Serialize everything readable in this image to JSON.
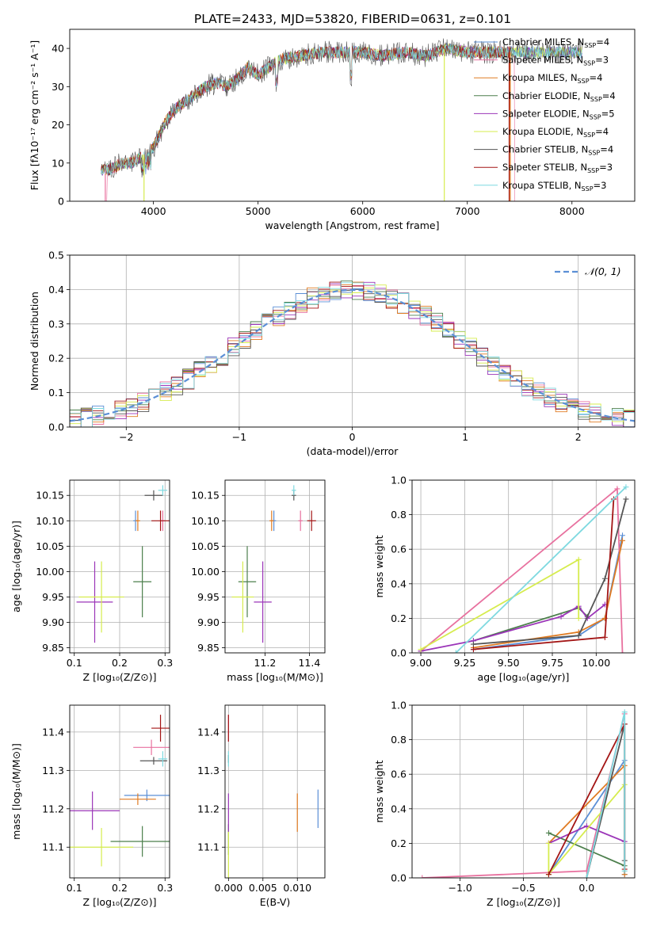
{
  "figure": {
    "title": "PLATE=2433, MJD=53820, FIBERID=0631, z=0.101"
  },
  "colors": {
    "Chabrier MILES": "#5b8fd6",
    "Salpeter MILES": "#e8719f",
    "Kroupa MILES": "#e07b22",
    "Chabrier ELODIE": "#4c7f4c",
    "Salpeter ELODIE": "#9b35b8",
    "Kroupa ELODIE": "#d6ec4e",
    "Chabrier STELIB": "#555555",
    "Salpeter STELIB": "#a31515",
    "Kroupa STELIB": "#7fd9e0",
    "gaussian": "#5b8fd6"
  },
  "chart_data": [
    {
      "id": "spectrum",
      "type": "line",
      "title": "PLATE=2433, MJD=53820, FIBERID=0631, z=0.101",
      "xlabel": "wavelength [Angstrom, rest frame]",
      "ylabel": "Flux [fλ10⁻¹⁷ erg cm⁻² s⁻¹ A⁻¹]",
      "xlim": [
        3200,
        8600
      ],
      "ylim": [
        0,
        45
      ],
      "xticks": [
        4000,
        5000,
        6000,
        7000,
        8000
      ],
      "yticks": [
        0,
        10,
        20,
        30,
        40
      ],
      "legend": "upper-right",
      "continuum": {
        "x": [
          3500,
          3600,
          3700,
          3800,
          3900,
          4000,
          4100,
          4200,
          4300,
          4400,
          4500,
          4600,
          4700,
          4800,
          4900,
          5000,
          5200,
          5400,
          5600,
          5800,
          6000,
          6200,
          6400,
          6600,
          6800,
          7000,
          7200,
          7400
        ],
        "y": [
          8,
          8.5,
          10,
          10,
          12,
          14,
          20,
          24,
          26,
          28,
          30,
          31,
          30,
          32,
          35,
          33,
          37,
          38,
          39,
          39,
          39,
          38,
          39,
          38,
          40,
          39,
          39,
          39
        ]
      },
      "series": [
        {
          "name": "Chabrier MILES",
          "label": "Chabrier MILES, N",
          "sub": "SSP",
          "n": "=4"
        },
        {
          "name": "Salpeter MILES",
          "label": "Salpeter MILES, N",
          "sub": "SSP",
          "n": "=3"
        },
        {
          "name": "Kroupa MILES",
          "label": "Kroupa MILES, N",
          "sub": "SSP",
          "n": "=4"
        },
        {
          "name": "Chabrier ELODIE",
          "label": "Chabrier ELODIE, N",
          "sub": "SSP",
          "n": "=4"
        },
        {
          "name": "Salpeter ELODIE",
          "label": "Salpeter ELODIE, N",
          "sub": "SSP",
          "n": "=5"
        },
        {
          "name": "Kroupa ELODIE",
          "label": "Kroupa ELODIE, N",
          "sub": "SSP",
          "n": "=4"
        },
        {
          "name": "Chabrier STELIB",
          "label": "Chabrier STELIB, N",
          "sub": "SSP",
          "n": "=4"
        },
        {
          "name": "Salpeter STELIB",
          "label": "Salpeter STELIB, N",
          "sub": "SSP",
          "n": "=3"
        },
        {
          "name": "Kroupa STELIB",
          "label": "Kroupa STELIB, N",
          "sub": "SSP",
          "n": "=3"
        }
      ],
      "drops": [
        {
          "name": "Salpeter MILES",
          "x": 3540
        },
        {
          "name": "Kroupa ELODIE",
          "x": 3910
        },
        {
          "name": "Kroupa ELODIE",
          "x": 6780
        },
        {
          "name": "Salpeter STELIB",
          "x": 7400
        },
        {
          "name": "Kroupa MILES",
          "x": 7410
        }
      ]
    },
    {
      "id": "residuals",
      "type": "histogram",
      "xlabel": "(data-model)/error",
      "ylabel": "Normed distribution",
      "xlim": [
        -2.5,
        2.5
      ],
      "ylim": [
        0,
        0.5
      ],
      "xticks": [
        -2,
        -1,
        0,
        1,
        2
      ],
      "yticks": [
        0.0,
        0.1,
        0.2,
        0.3,
        0.4,
        0.5
      ],
      "grid": true,
      "legend": "upper-right",
      "legend_label": "𝒩(0, 1)",
      "bin_width": 0.1
    },
    {
      "id": "age-vs-Z",
      "type": "errorbar",
      "xlabel": "Z [log₁₀(Z/Z⊙)]",
      "ylabel": "age [log₁₀(age/yr)]",
      "xlim": [
        0.09,
        0.31
      ],
      "ylim": [
        9.84,
        10.18
      ],
      "xticks": [
        0.1,
        0.2,
        0.3
      ],
      "yticks": [
        9.85,
        9.9,
        9.95,
        10.0,
        10.05,
        10.1,
        10.15
      ],
      "grid": true,
      "points": [
        {
          "name": "Chabrier MILES",
          "x": 0.235,
          "xerr": 0.005,
          "y": 10.1,
          "yerr": 0.02
        },
        {
          "name": "Salpeter MILES",
          "x": 0.295,
          "xerr": 0.005,
          "y": 10.1,
          "yerr": 0.02
        },
        {
          "name": "Kroupa MILES",
          "x": 0.24,
          "xerr": 0.005,
          "y": 10.1,
          "yerr": 0.02
        },
        {
          "name": "Chabrier ELODIE",
          "x": 0.25,
          "xerr": 0.02,
          "y": 9.98,
          "yerr": 0.07
        },
        {
          "name": "Salpeter ELODIE",
          "x": 0.145,
          "xerr": 0.04,
          "y": 9.94,
          "yerr": 0.08
        },
        {
          "name": "Kroupa ELODIE",
          "x": 0.16,
          "xerr": 0.05,
          "y": 9.95,
          "yerr": 0.07
        },
        {
          "name": "Chabrier STELIB",
          "x": 0.275,
          "xerr": 0.02,
          "y": 10.15,
          "yerr": 0.01
        },
        {
          "name": "Salpeter STELIB",
          "x": 0.29,
          "xerr": 0.02,
          "y": 10.1,
          "yerr": 0.02
        },
        {
          "name": "Kroupa STELIB",
          "x": 0.295,
          "xerr": 0.01,
          "y": 10.16,
          "yerr": 0.01
        }
      ]
    },
    {
      "id": "age-vs-mass",
      "type": "errorbar",
      "xlabel": "mass [log₁₀(M/M⊙)]",
      "ylabel": "",
      "xlim": [
        11.02,
        11.47
      ],
      "ylim": [
        9.84,
        10.18
      ],
      "xticks": [
        11.2,
        11.4
      ],
      "yticks": [
        9.85,
        9.9,
        9.95,
        10.0,
        10.05,
        10.1,
        10.15
      ],
      "grid": true,
      "points": [
        {
          "name": "Chabrier MILES",
          "x": 11.24,
          "xerr": 0.01,
          "y": 10.1,
          "yerr": 0.02
        },
        {
          "name": "Salpeter MILES",
          "x": 11.36,
          "xerr": 0.01,
          "y": 10.1,
          "yerr": 0.02
        },
        {
          "name": "Kroupa MILES",
          "x": 11.23,
          "xerr": 0.01,
          "y": 10.1,
          "yerr": 0.02
        },
        {
          "name": "Chabrier ELODIE",
          "x": 11.12,
          "xerr": 0.04,
          "y": 9.98,
          "yerr": 0.07
        },
        {
          "name": "Salpeter ELODIE",
          "x": 11.19,
          "xerr": 0.04,
          "y": 9.94,
          "yerr": 0.08
        },
        {
          "name": "Kroupa ELODIE",
          "x": 11.1,
          "xerr": 0.05,
          "y": 9.95,
          "yerr": 0.07
        },
        {
          "name": "Chabrier STELIB",
          "x": 11.33,
          "xerr": 0.01,
          "y": 10.15,
          "yerr": 0.01
        },
        {
          "name": "Salpeter STELIB",
          "x": 11.41,
          "xerr": 0.02,
          "y": 10.1,
          "yerr": 0.02
        },
        {
          "name": "Kroupa STELIB",
          "x": 11.33,
          "xerr": 0.01,
          "y": 10.16,
          "yerr": 0.01
        }
      ]
    },
    {
      "id": "weight-vs-age",
      "type": "line",
      "xlabel": "age [log₁₀(age/yr)]",
      "ylabel": "mass weight",
      "xlim": [
        8.95,
        10.22
      ],
      "ylim": [
        0,
        1
      ],
      "xticks": [
        9.0,
        9.25,
        9.5,
        9.75,
        10.0
      ],
      "yticks": [
        0.0,
        0.2,
        0.4,
        0.6,
        0.8,
        1.0
      ],
      "grid": true,
      "series": [
        {
          "name": "Chabrier MILES",
          "x": [
            9.3,
            9.9,
            10.05,
            10.15
          ],
          "y": [
            0.02,
            0.1,
            0.2,
            0.68
          ]
        },
        {
          "name": "Salpeter MILES",
          "x": [
            9.0,
            10.12,
            10.15
          ],
          "y": [
            0.01,
            0.95,
            0.0
          ]
        },
        {
          "name": "Kroupa MILES",
          "x": [
            9.3,
            9.9,
            10.05,
            10.15
          ],
          "y": [
            0.03,
            0.12,
            0.2,
            0.65
          ]
        },
        {
          "name": "Chabrier ELODIE",
          "x": [
            9.3,
            9.9,
            9.95
          ],
          "y": [
            0.07,
            0.26,
            0.21
          ]
        },
        {
          "name": "Salpeter ELODIE",
          "x": [
            9.0,
            9.3,
            9.8,
            9.9,
            9.95,
            10.05
          ],
          "y": [
            0.01,
            0.07,
            0.21,
            0.27,
            0.2,
            0.28
          ]
        },
        {
          "name": "Kroupa ELODIE",
          "x": [
            9.0,
            9.9,
            9.9
          ],
          "y": [
            0.02,
            0.54,
            0.2
          ]
        },
        {
          "name": "Chabrier STELIB",
          "x": [
            9.3,
            9.9,
            10.05,
            10.17
          ],
          "y": [
            0.05,
            0.1,
            0.43,
            0.89
          ]
        },
        {
          "name": "Salpeter STELIB",
          "x": [
            9.3,
            10.05,
            10.1
          ],
          "y": [
            0.02,
            0.09,
            0.89
          ]
        },
        {
          "name": "Kroupa STELIB",
          "x": [
            9.2,
            10.17
          ],
          "y": [
            0.0,
            0.96
          ]
        }
      ]
    },
    {
      "id": "mass-vs-Z",
      "type": "errorbar",
      "xlabel": "Z [log₁₀(Z/Z⊙)]",
      "ylabel": "mass [log₁₀(M/M⊙)]",
      "xlim": [
        0.09,
        0.31
      ],
      "ylim": [
        11.02,
        11.47
      ],
      "xticks": [
        0.1,
        0.2,
        0.3
      ],
      "yticks": [
        11.1,
        11.2,
        11.3,
        11.4
      ],
      "grid": true,
      "points": [
        {
          "name": "Chabrier MILES",
          "x": 0.26,
          "xerr": 0.05,
          "y": 11.235,
          "yerr": 0.015
        },
        {
          "name": "Salpeter MILES",
          "x": 0.27,
          "xerr": 0.04,
          "y": 11.36,
          "yerr": 0.02
        },
        {
          "name": "Kroupa MILES",
          "x": 0.24,
          "xerr": 0.04,
          "y": 11.225,
          "yerr": 0.015
        },
        {
          "name": "Chabrier ELODIE",
          "x": 0.25,
          "xerr": 0.07,
          "y": 11.115,
          "yerr": 0.04
        },
        {
          "name": "Salpeter ELODIE",
          "x": 0.14,
          "xerr": 0.06,
          "y": 11.195,
          "yerr": 0.05
        },
        {
          "name": "Kroupa ELODIE",
          "x": 0.16,
          "xerr": 0.07,
          "y": 11.1,
          "yerr": 0.05
        },
        {
          "name": "Chabrier STELIB",
          "x": 0.275,
          "xerr": 0.03,
          "y": 11.325,
          "yerr": 0.01
        },
        {
          "name": "Salpeter STELIB",
          "x": 0.29,
          "xerr": 0.02,
          "y": 11.41,
          "yerr": 0.035
        },
        {
          "name": "Kroupa STELIB",
          "x": 0.295,
          "xerr": 0.01,
          "y": 11.33,
          "yerr": 0.02
        }
      ]
    },
    {
      "id": "mass-vs-EBV",
      "type": "errorbar",
      "xlabel": "E(B-V)",
      "ylabel": "",
      "xlim": [
        -0.0005,
        0.014
      ],
      "ylim": [
        11.02,
        11.47
      ],
      "xticks": [
        0.0,
        0.005,
        0.01
      ],
      "yticks": [
        11.1,
        11.2,
        11.3,
        11.4
      ],
      "grid": true,
      "points": [
        {
          "name": "Chabrier MILES",
          "x": 0.013,
          "xerr": 0,
          "y": 11.2,
          "yerr": 0.05
        },
        {
          "name": "Salpeter MILES",
          "x": 0.0,
          "xerr": 0,
          "y": 11.41,
          "yerr": 0.035
        },
        {
          "name": "Kroupa MILES",
          "x": 0.01,
          "xerr": 0,
          "y": 11.19,
          "yerr": 0.05
        },
        {
          "name": "Chabrier ELODIE",
          "x": 0.0,
          "xerr": 0,
          "y": 11.12,
          "yerr": 0.04
        },
        {
          "name": "Salpeter ELODIE",
          "x": 0.0,
          "xerr": 0,
          "y": 11.19,
          "yerr": 0.05
        },
        {
          "name": "Kroupa ELODIE",
          "x": 0.0,
          "xerr": 0,
          "y": 11.08,
          "yerr": 0.06
        },
        {
          "name": "Chabrier STELIB",
          "x": 0.0,
          "xerr": 0,
          "y": 11.33,
          "yerr": 0.01
        },
        {
          "name": "Salpeter STELIB",
          "x": 0.0,
          "xerr": 0,
          "y": 11.41,
          "yerr": 0.035
        },
        {
          "name": "Kroupa STELIB",
          "x": 0.0,
          "xerr": 0,
          "y": 11.33,
          "yerr": 0.02
        }
      ]
    },
    {
      "id": "weight-vs-Z",
      "type": "line",
      "xlabel": "Z [log₁₀(Z/Z⊙)]",
      "ylabel": "mass weight",
      "xlim": [
        -1.38,
        0.38
      ],
      "ylim": [
        0,
        1
      ],
      "xticks": [
        -1.0,
        -0.5,
        0.0
      ],
      "yticks": [
        0.0,
        0.2,
        0.4,
        0.6,
        0.8,
        1.0
      ],
      "grid": true,
      "series": [
        {
          "name": "Chabrier MILES",
          "x": [
            -0.3,
            0.3,
            0.3
          ],
          "y": [
            0.02,
            0.68,
            0.02
          ]
        },
        {
          "name": "Salpeter MILES",
          "x": [
            -1.3,
            0.0,
            0.3
          ],
          "y": [
            0.0,
            0.04,
            0.95
          ]
        },
        {
          "name": "Kroupa MILES",
          "x": [
            -0.3,
            0.3,
            0.3
          ],
          "y": [
            0.2,
            0.65,
            0.02
          ]
        },
        {
          "name": "Chabrier ELODIE",
          "x": [
            -0.3,
            0.3
          ],
          "y": [
            0.26,
            0.07
          ]
        },
        {
          "name": "Salpeter ELODIE",
          "x": [
            -0.3,
            0.0,
            0.3
          ],
          "y": [
            0.2,
            0.3,
            0.21
          ]
        },
        {
          "name": "Kroupa ELODIE",
          "x": [
            -0.3,
            -0.3,
            0.3
          ],
          "y": [
            0.2,
            0.02,
            0.54
          ]
        },
        {
          "name": "Chabrier STELIB",
          "x": [
            0.0,
            0.3,
            0.3
          ],
          "y": [
            0.0,
            0.89,
            0.1
          ]
        },
        {
          "name": "Salpeter STELIB",
          "x": [
            -0.3,
            0.3,
            0.3
          ],
          "y": [
            0.02,
            0.89,
            0.05
          ]
        },
        {
          "name": "Kroupa STELIB",
          "x": [
            0.0,
            0.3,
            0.3
          ],
          "y": [
            0.0,
            0.96,
            0.04
          ]
        }
      ]
    }
  ]
}
